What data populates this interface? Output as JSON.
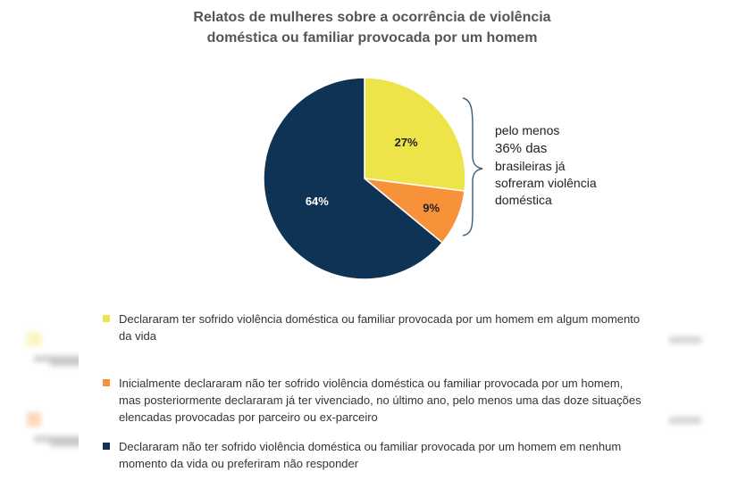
{
  "chart_data": {
    "type": "pie",
    "title_lines": [
      "Relatos de mulheres sobre a ocorrência de violência",
      "doméstica ou familiar provocada por um homem"
    ],
    "slices": [
      {
        "value": 27,
        "label": "27%",
        "color": "#ede44a",
        "legend": "Declararam ter sofrido violência doméstica ou familiar provocada por um homem em algum momento da vida"
      },
      {
        "value": 9,
        "label": "9%",
        "color": "#f7923a",
        "legend": "Inicialmente declararam não ter sofrido violência doméstica ou familiar provocada por um homem, mas posteriormente declararam já ter vivenciado, no último ano, pelo menos uma das doze situações elencadas provocadas por parceiro ou ex-parceiro"
      },
      {
        "value": 64,
        "label": "64%",
        "color": "#0f3355",
        "legend": "Declararam não ter sofrido violência doméstica ou familiar provocada por um homem em nenhum momento da vida ou preferiram não responder"
      }
    ],
    "annotation": {
      "line1": "pelo menos",
      "line2": "36% das",
      "line3": "brasileiras já",
      "line4": "sofreram violência",
      "line5": "doméstica"
    },
    "legend_placement": "bottom"
  }
}
